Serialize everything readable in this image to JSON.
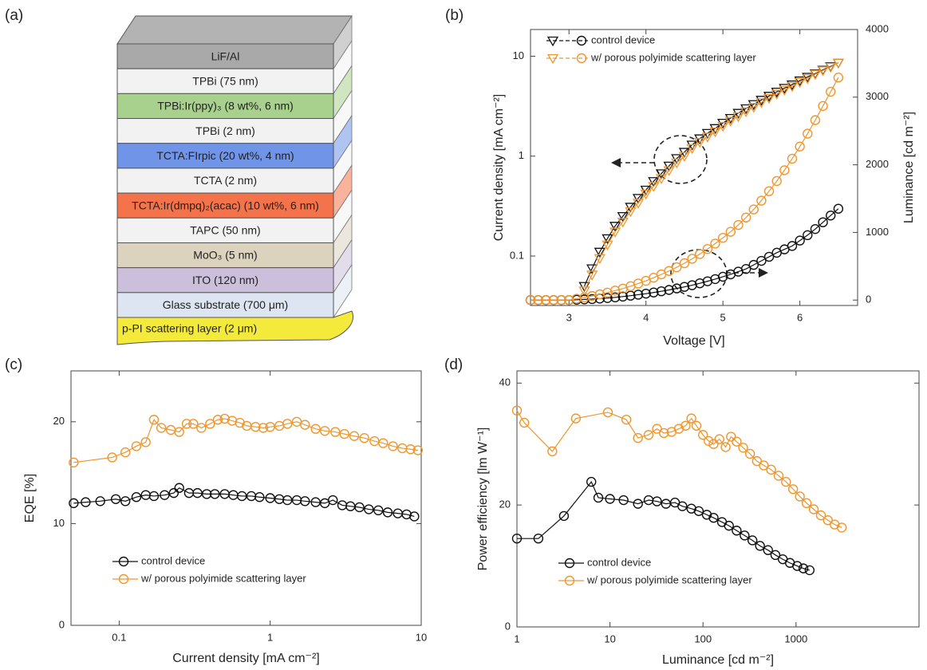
{
  "diagram": {
    "label": "(a)",
    "layers": [
      {
        "name": "LiF/Al",
        "color": "#a9a9a9"
      },
      {
        "name": "TPBi (75 nm)",
        "color": "#f2f2f2"
      },
      {
        "name": "TPBi:Ir(ppy)₃ (8 wt%, 6 nm)",
        "color": "#a9d18e"
      },
      {
        "name": "TPBi (2 nm)",
        "color": "#f2f2f2"
      },
      {
        "name": "TCTA:FIrpic (20 wt%, 4 nm)",
        "color": "#6f94e8"
      },
      {
        "name": "TCTA (2 nm)",
        "color": "#f2f2f2"
      },
      {
        "name": "TCTA:Ir(dmpq)₂(acac) (10 wt%, 6 nm)",
        "color": "#f4734b"
      },
      {
        "name": "TAPC (50 nm)",
        "color": "#f2f2f2"
      },
      {
        "name": "MoO₃ (5 nm)",
        "color": "#dcd3bf"
      },
      {
        "name": "ITO (120 nm)",
        "color": "#cbbfdb"
      },
      {
        "name": "Glass substrate (700 μm)",
        "color": "#dce5f1"
      }
    ],
    "base_layer": {
      "name": "p-PI scattering layer (2 μm)",
      "color": "#f3ea3c"
    }
  },
  "chart_data": [
    {
      "type": "line",
      "label": "(b)",
      "xlabel": "Voltage [V]",
      "ylabel": "Current density [mA cm⁻²]",
      "y2label": "Luminance [cd m⁻²]",
      "xscale": "linear",
      "yscale": "log",
      "xlim": [
        2.5,
        6.75
      ],
      "ylim": [
        0.032,
        18.5
      ],
      "y2lim": [
        -80,
        4000
      ],
      "xticks": [
        3,
        4,
        5,
        6
      ],
      "yticks": [
        0.1,
        1,
        10
      ],
      "y2ticks": [
        0,
        1000,
        2000,
        3000,
        4000
      ],
      "legend": "upper left",
      "x": [
        2.5,
        2.6,
        2.7,
        2.8,
        2.9,
        3.0,
        3.1,
        3.2,
        3.3,
        3.4,
        3.5,
        3.6,
        3.7,
        3.8,
        3.9,
        4.0,
        4.1,
        4.2,
        4.3,
        4.4,
        4.5,
        4.6,
        4.7,
        4.8,
        4.9,
        5.0,
        5.1,
        5.2,
        5.3,
        5.4,
        5.5,
        5.6,
        5.7,
        5.8,
        5.9,
        6.0,
        6.1,
        6.2,
        6.3,
        6.4,
        6.5
      ],
      "series": [
        {
          "name": "control device",
          "color": "#111111",
          "marker": "triangle",
          "values": [
            null,
            null,
            null,
            null,
            null,
            null,
            null,
            0.05,
            0.075,
            0.11,
            0.15,
            0.2,
            0.25,
            0.31,
            0.38,
            0.46,
            0.56,
            0.67,
            0.8,
            0.95,
            1.1,
            1.3,
            1.5,
            1.7,
            1.9,
            2.15,
            2.4,
            2.7,
            3.0,
            3.3,
            3.65,
            4.0,
            4.4,
            4.8,
            5.2,
            5.7,
            6.2,
            6.7,
            7.3,
            7.9,
            8.6
          ]
        },
        {
          "name": "w/ porous polyimide scattering layer",
          "color": "#f0962e",
          "marker": "triangle",
          "values": [
            null,
            null,
            null,
            null,
            null,
            null,
            null,
            0.045,
            0.065,
            0.095,
            0.13,
            0.175,
            0.22,
            0.28,
            0.34,
            0.42,
            0.5,
            0.6,
            0.72,
            0.86,
            1.0,
            1.2,
            1.38,
            1.56,
            1.76,
            2.0,
            2.25,
            2.5,
            2.8,
            3.1,
            3.45,
            3.8,
            4.2,
            4.6,
            5.0,
            5.5,
            6.0,
            6.6,
            7.2,
            7.8,
            8.6
          ]
        },
        {
          "color": "#111111",
          "marker": "circle",
          "axis": "y2",
          "values": [
            0,
            0,
            0,
            0,
            0,
            0,
            5,
            10,
            15,
            22,
            30,
            40,
            52,
            65,
            80,
            95,
            112,
            130,
            150,
            172,
            195,
            220,
            248,
            278,
            310,
            345,
            380,
            420,
            460,
            520,
            580,
            640,
            700,
            750,
            800,
            880,
            960,
            1050,
            1150,
            1250,
            1350
          ]
        },
        {
          "color": "#f0962e",
          "marker": "circle",
          "axis": "y2",
          "values": [
            0,
            0,
            0,
            0,
            0,
            0,
            20,
            40,
            60,
            85,
            110,
            140,
            170,
            205,
            245,
            285,
            330,
            380,
            430,
            485,
            545,
            610,
            680,
            755,
            835,
            920,
            1010,
            1110,
            1220,
            1340,
            1470,
            1610,
            1760,
            1920,
            2090,
            2270,
            2460,
            2660,
            2870,
            3080,
            3290
          ]
        }
      ]
    },
    {
      "type": "line",
      "label": "(c)",
      "xlabel": "Current density [mA cm⁻²]",
      "ylabel": "EQE [%]",
      "xscale": "log",
      "yscale": "linear",
      "xlim": [
        0.048,
        10
      ],
      "ylim": [
        0,
        25
      ],
      "xticks": [
        0.1,
        1,
        10
      ],
      "yticks": [
        0,
        10,
        20
      ],
      "legend": "lower left",
      "series": [
        {
          "name": "control device",
          "color": "#111111",
          "marker": "circle",
          "x": [
            0.05,
            0.06,
            0.075,
            0.095,
            0.11,
            0.13,
            0.15,
            0.17,
            0.2,
            0.23,
            0.25,
            0.29,
            0.33,
            0.38,
            0.43,
            0.5,
            0.57,
            0.65,
            0.75,
            0.85,
            1.0,
            1.15,
            1.3,
            1.5,
            1.7,
            2.0,
            2.3,
            2.6,
            3.0,
            3.4,
            3.9,
            4.5,
            5.2,
            6.0,
            7.0,
            8.0,
            9.0
          ],
          "values": [
            12.0,
            12.1,
            12.2,
            12.4,
            12.2,
            12.6,
            12.8,
            12.7,
            12.8,
            13.0,
            13.5,
            13.0,
            13.0,
            12.9,
            12.9,
            12.9,
            12.8,
            12.7,
            12.7,
            12.6,
            12.5,
            12.4,
            12.3,
            12.3,
            12.2,
            12.1,
            12.0,
            12.3,
            11.8,
            11.7,
            11.6,
            11.4,
            11.3,
            11.1,
            11.0,
            10.9,
            10.7
          ]
        },
        {
          "name": "w/ porous polyimide scattering layer",
          "color": "#f0962e",
          "marker": "circle",
          "x": [
            0.05,
            0.09,
            0.11,
            0.13,
            0.15,
            0.17,
            0.19,
            0.22,
            0.25,
            0.28,
            0.31,
            0.35,
            0.4,
            0.45,
            0.5,
            0.56,
            0.63,
            0.7,
            0.8,
            0.9,
            1.0,
            1.15,
            1.3,
            1.5,
            1.7,
            2.0,
            2.3,
            2.7,
            3.1,
            3.6,
            4.2,
            4.9,
            5.6,
            6.5,
            7.5,
            8.5,
            9.5
          ],
          "values": [
            16.0,
            16.5,
            17.0,
            17.6,
            18.0,
            20.2,
            19.4,
            19.2,
            19.0,
            19.8,
            19.8,
            19.4,
            19.8,
            20.2,
            20.3,
            20.1,
            19.9,
            19.6,
            19.5,
            19.4,
            19.5,
            19.6,
            19.8,
            20.0,
            19.7,
            19.3,
            19.1,
            19.0,
            18.8,
            18.6,
            18.4,
            18.1,
            17.9,
            17.6,
            17.4,
            17.3,
            17.2
          ]
        }
      ]
    },
    {
      "type": "line",
      "label": "(d)",
      "xlabel": "Luminance [cd m⁻²]",
      "ylabel": "Power efficiency [lm W⁻¹]",
      "xscale": "log",
      "yscale": "linear",
      "xlim": [
        1,
        21000
      ],
      "ylim": [
        0,
        42
      ],
      "xticks": [
        1,
        10,
        100,
        1000
      ],
      "yticks": [
        0,
        20,
        40
      ],
      "legend": "lower left",
      "series": [
        {
          "name": "control device",
          "color": "#111111",
          "marker": "circle",
          "x": [
            1,
            1.7,
            3.2,
            6.3,
            7.5,
            10,
            14,
            20,
            26,
            32,
            40,
            50,
            60,
            75,
            90,
            110,
            130,
            160,
            190,
            230,
            280,
            340,
            410,
            500,
            600,
            720,
            860,
            1030,
            1200,
            1400
          ],
          "values": [
            14.5,
            14.5,
            18.2,
            23.8,
            21.2,
            21.0,
            20.8,
            20.2,
            20.8,
            20.6,
            20.2,
            20.4,
            19.8,
            19.4,
            19.0,
            18.4,
            17.9,
            17.2,
            16.6,
            15.8,
            15.0,
            14.2,
            13.3,
            12.6,
            11.8,
            11.1,
            10.5,
            10.0,
            9.6,
            9.3
          ]
        },
        {
          "name": "w/ porous polyimide scattering layer",
          "color": "#f0962e",
          "marker": "circle",
          "x": [
            1,
            1.2,
            2.4,
            4.3,
            9.5,
            15,
            20,
            26,
            32,
            38,
            46,
            55,
            65,
            75,
            85,
            100,
            115,
            130,
            150,
            175,
            200,
            230,
            270,
            320,
            380,
            450,
            540,
            650,
            780,
            930,
            1100,
            1300,
            1550,
            1850,
            2200,
            2600,
            3100
          ],
          "values": [
            35.5,
            33.5,
            28.8,
            34.2,
            35.2,
            34.0,
            31.0,
            31.5,
            32.5,
            31.8,
            32.0,
            32.5,
            33.0,
            34.2,
            33.0,
            31.5,
            30.5,
            30.0,
            30.8,
            29.5,
            31.2,
            30.4,
            29.4,
            28.4,
            27.2,
            26.5,
            25.8,
            24.8,
            23.8,
            22.6,
            21.4,
            20.3,
            19.3,
            18.3,
            17.5,
            16.8,
            16.3
          ]
        }
      ]
    }
  ]
}
